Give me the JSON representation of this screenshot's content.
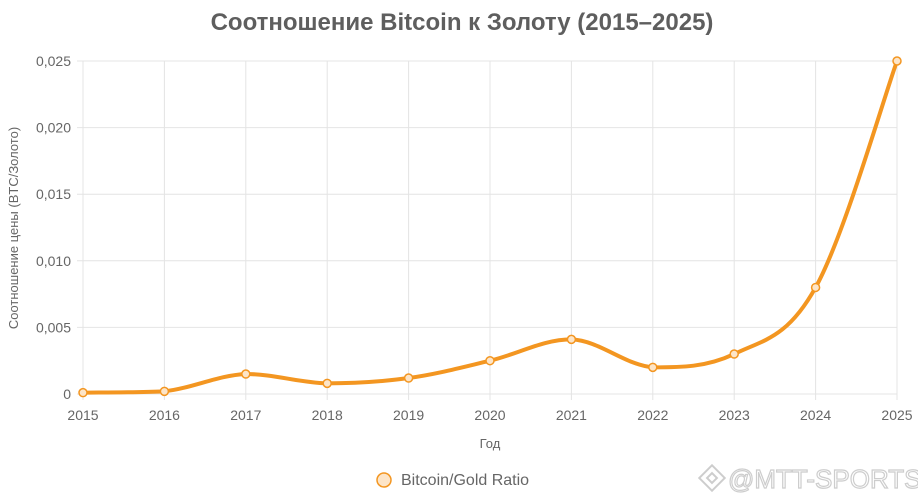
{
  "chart_data": {
    "type": "line",
    "title": "Соотношение Bitcoin к Золоту (2015–2025)",
    "xlabel": "Год",
    "ylabel": "Соотношение цены (BTC/Золото)",
    "categories": [
      "2015",
      "2016",
      "2017",
      "2018",
      "2019",
      "2020",
      "2021",
      "2022",
      "2023",
      "2024",
      "2025"
    ],
    "series": [
      {
        "name": "Bitcoin/Gold Ratio",
        "values": [
          0.0001,
          0.0002,
          0.0015,
          0.0008,
          0.0012,
          0.0025,
          0.0041,
          0.002,
          0.003,
          0.008,
          0.025
        ]
      }
    ],
    "ylim": [
      0,
      0.025
    ],
    "y_ticks": [
      {
        "value": 0,
        "label": "0"
      },
      {
        "value": 0.005,
        "label": "0,005"
      },
      {
        "value": 0.01,
        "label": "0,010"
      },
      {
        "value": 0.015,
        "label": "0,015"
      },
      {
        "value": 0.02,
        "label": "0,020"
      },
      {
        "value": 0.025,
        "label": "0,025"
      }
    ],
    "grid": true,
    "legend_position": "bottom"
  },
  "colors": {
    "line": "#f39621",
    "marker_fill": "#fde5c8",
    "grid": "#e4e4e4"
  },
  "watermark": {
    "text": "@MTT-SPORTS",
    "icon": "diamond-logo-icon"
  }
}
